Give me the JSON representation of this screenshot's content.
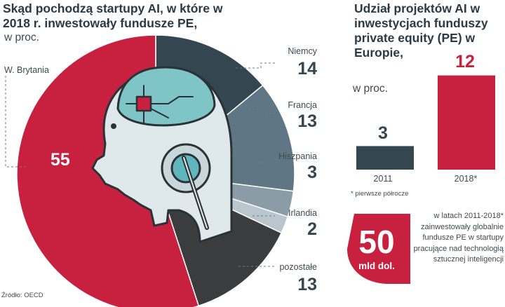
{
  "left_title": "Skąd pochodzą startupy AI, w które w 2018 r. inwestowały fundusze PE,",
  "left_subtitle": "w proc.",
  "right_title": "Udział projektów AI w inwestycjach funduszy private equity (PE) w Europie,",
  "right_subtitle": "w proc.",
  "footnote": "* pierwsze półrocze",
  "source": "Źródło: OECD",
  "callout": {
    "value": "50",
    "unit": "mld dol.",
    "text": "w latach 2011-2018* zainwestowały globalnie fundusze PE w startupy pracujące nad technologią sztucznej inteligencji"
  },
  "colors": {
    "red": "#c8203f",
    "navy": "#34464f",
    "steel": "#5f7784",
    "grey": "#8a9ca6",
    "light": "#b9c6cd",
    "dark": "#3a3c3e",
    "teal": "#5fb7bd"
  },
  "chart_data": [
    {
      "type": "pie",
      "title": "Skąd pochodzą startupy AI, w które w 2018 r. inwestowały fundusze PE,",
      "unit": "w proc.",
      "categories": [
        "W. Brytania",
        "Niemcy",
        "Francja",
        "Hiszpania",
        "Irlandia",
        "pozostałe"
      ],
      "values": [
        55,
        14,
        13,
        3,
        2,
        13
      ],
      "colors": [
        "#c8203f",
        "#34464f",
        "#5f7784",
        "#8a9ca6",
        "#b9c6cd",
        "#3a3c3e"
      ]
    },
    {
      "type": "bar",
      "title": "Udział projektów AI w inwestycjach funduszy private equity (PE) w Europie,",
      "unit": "w proc.",
      "categories": [
        "2011",
        "2018*"
      ],
      "values": [
        3,
        12
      ],
      "colors": [
        "#34464f",
        "#c8203f"
      ]
    }
  ]
}
